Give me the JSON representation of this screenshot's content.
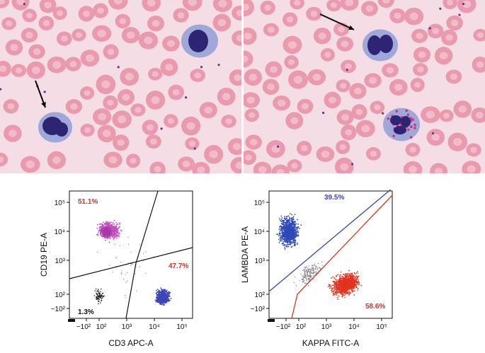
{
  "panels": {
    "left_plot": {
      "x_axis_label": "CD3 APC-A",
      "y_axis_label": "CD19 PE-A",
      "x_ticks": [
        "−10²",
        "10²",
        "10³",
        "10⁴",
        "10⁵"
      ],
      "y_ticks": [
        "10⁵",
        "10⁴",
        "10³",
        "10²",
        "−10²"
      ],
      "populations": [
        {
          "label": "51.1%",
          "color": "#c0392b"
        },
        {
          "label": "47.7%",
          "color": "#c0392b"
        },
        {
          "label": "1.3%",
          "color": "#111111"
        }
      ],
      "cluster_colors": {
        "b_cells": "#c44cc0",
        "t_cells": "#3a47b8",
        "negative": "#222222"
      }
    },
    "right_plot": {
      "x_axis_label": "KAPPA FITC-A",
      "y_axis_label": "LAMBDA PE-A",
      "x_ticks": [
        "−10²",
        "10²",
        "10³",
        "10⁴",
        "10⁵"
      ],
      "y_ticks": [
        "10⁵",
        "10⁴",
        "10³",
        "10²",
        "−10²"
      ],
      "populations": [
        {
          "label": "39.5%",
          "color": "#3a47b8"
        },
        {
          "label": "58.6%",
          "color": "#c0392b"
        }
      ],
      "cluster_colors": {
        "lambda": "#2f48b8",
        "kappa": "#e3321f",
        "other": "#8a8a8a"
      }
    },
    "photo_colors": {
      "background": "#f4dde4",
      "rbc": "#e99aae",
      "rbc_center": "#f3c3cf",
      "nucleus": "#2e2474",
      "cytoplasm": "#9fa8d8",
      "granules": "#d2327a"
    }
  }
}
